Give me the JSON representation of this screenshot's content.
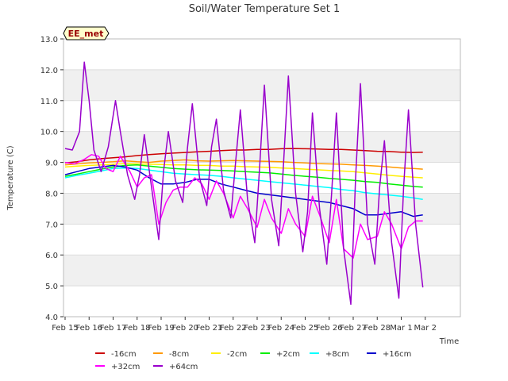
{
  "chart_data": {
    "type": "line",
    "title": "Soil/Water Temperature Set 1",
    "xlabel": "Time",
    "ylabel": "Temperature (C)",
    "station_label": "EE_met",
    "ylim": [
      4.0,
      13.0
    ],
    "yticks": [
      "4.0",
      "5.0",
      "6.0",
      "7.0",
      "8.0",
      "9.0",
      "10.0",
      "11.0",
      "12.0",
      "13.0"
    ],
    "xlim": [
      0,
      16
    ],
    "xtick_labels": [
      "Feb 15",
      "Feb 16",
      "Feb 17",
      "Feb 18",
      "Feb 19",
      "Feb 20",
      "Feb 21",
      "Feb 22",
      "Feb 23",
      "Feb 24",
      "Feb 25",
      "Feb 26",
      "Feb 27",
      "Feb 28",
      "Mar 1",
      "Mar 2"
    ],
    "grid": "horizontal alternating bands",
    "legend_placement": "bottom",
    "series": [
      {
        "name": "-16cm",
        "color": "#cc0000",
        "x": [
          0,
          0.5,
          1,
          1.5,
          2,
          2.5,
          3,
          3.5,
          4,
          4.5,
          5,
          5.5,
          6,
          6.5,
          7,
          7.5,
          8,
          8.5,
          9,
          9.5,
          10,
          10.5,
          11,
          11.5,
          12,
          12.5,
          13,
          13.5,
          14,
          14.5,
          14.9
        ],
        "values": [
          8.98,
          9.02,
          9.08,
          9.12,
          9.15,
          9.18,
          9.22,
          9.25,
          9.28,
          9.3,
          9.32,
          9.34,
          9.36,
          9.38,
          9.4,
          9.4,
          9.42,
          9.42,
          9.44,
          9.45,
          9.44,
          9.43,
          9.42,
          9.42,
          9.4,
          9.38,
          9.36,
          9.35,
          9.33,
          9.32,
          9.33
        ]
      },
      {
        "name": "-8cm",
        "color": "#ff9900",
        "x": [
          0,
          0.5,
          1,
          1.5,
          2,
          2.5,
          3,
          3.5,
          4,
          4.5,
          5,
          5.5,
          6,
          6.5,
          7,
          7.5,
          8,
          8.5,
          9,
          9.5,
          10,
          10.5,
          11,
          11.5,
          12,
          12.5,
          13,
          13.5,
          14,
          14.5,
          14.9
        ],
        "values": [
          8.92,
          8.95,
          8.98,
          9.0,
          9.02,
          9.05,
          9.02,
          9.0,
          9.04,
          9.06,
          9.08,
          9.05,
          9.04,
          9.05,
          9.06,
          9.05,
          9.04,
          9.03,
          9.02,
          9.0,
          8.98,
          8.96,
          8.95,
          8.94,
          8.92,
          8.9,
          8.88,
          8.85,
          8.82,
          8.8,
          8.78
        ]
      },
      {
        "name": "-2cm",
        "color": "#ffee00",
        "x": [
          0,
          0.5,
          1,
          1.5,
          2,
          2.5,
          3,
          3.5,
          4,
          4.5,
          5,
          5.5,
          6,
          6.5,
          7,
          7.5,
          8,
          8.5,
          9,
          9.5,
          10,
          10.5,
          11,
          11.5,
          12,
          12.5,
          13,
          13.5,
          14,
          14.5,
          14.9
        ],
        "values": [
          8.85,
          8.88,
          8.9,
          8.92,
          8.94,
          8.96,
          8.95,
          8.94,
          8.93,
          8.92,
          8.92,
          8.9,
          8.9,
          8.88,
          8.88,
          8.86,
          8.85,
          8.84,
          8.82,
          8.8,
          8.78,
          8.76,
          8.74,
          8.72,
          8.7,
          8.66,
          8.62,
          8.58,
          8.55,
          8.52,
          8.5
        ]
      },
      {
        "name": "+2cm",
        "color": "#00ee00",
        "x": [
          0,
          0.5,
          1,
          1.5,
          2,
          2.5,
          3,
          3.5,
          4,
          4.5,
          5,
          5.5,
          6,
          6.5,
          7,
          7.5,
          8,
          8.5,
          9,
          9.5,
          10,
          10.5,
          11,
          11.5,
          12,
          12.5,
          13,
          13.5,
          14,
          14.5,
          14.9
        ],
        "values": [
          8.55,
          8.62,
          8.7,
          8.78,
          8.85,
          8.9,
          8.92,
          8.88,
          8.84,
          8.8,
          8.78,
          8.76,
          8.75,
          8.74,
          8.72,
          8.7,
          8.68,
          8.66,
          8.62,
          8.58,
          8.55,
          8.52,
          8.48,
          8.45,
          8.42,
          8.38,
          8.35,
          8.3,
          8.26,
          8.22,
          8.2
        ]
      },
      {
        "name": "+8cm",
        "color": "#00ffff",
        "x": [
          0,
          0.5,
          1,
          1.5,
          2,
          2.5,
          3,
          3.5,
          4,
          4.5,
          5,
          5.5,
          6,
          6.5,
          7,
          7.5,
          8,
          8.5,
          9,
          9.5,
          10,
          10.5,
          11,
          11.5,
          12,
          12.5,
          13,
          13.5,
          14,
          14.5,
          14.9
        ],
        "values": [
          8.5,
          8.58,
          8.65,
          8.72,
          8.8,
          8.82,
          8.8,
          8.75,
          8.7,
          8.65,
          8.62,
          8.6,
          8.58,
          8.55,
          8.5,
          8.46,
          8.42,
          8.38,
          8.34,
          8.3,
          8.26,
          8.22,
          8.18,
          8.12,
          8.08,
          8.02,
          7.98,
          7.94,
          7.9,
          7.85,
          7.8
        ]
      },
      {
        "name": "+16cm",
        "color": "#0000cc",
        "x": [
          0,
          0.5,
          1,
          1.5,
          2,
          2.5,
          3,
          3.5,
          4,
          4.5,
          5,
          5.5,
          6,
          6.5,
          7,
          7.5,
          8,
          8.5,
          9,
          9.5,
          10,
          10.5,
          11,
          11.5,
          12,
          12.5,
          13,
          13.5,
          14,
          14.5,
          14.9
        ],
        "values": [
          8.6,
          8.7,
          8.8,
          8.85,
          8.9,
          8.85,
          8.75,
          8.5,
          8.3,
          8.3,
          8.35,
          8.45,
          8.45,
          8.3,
          8.2,
          8.1,
          8.0,
          7.95,
          7.9,
          7.85,
          7.8,
          7.75,
          7.7,
          7.6,
          7.5,
          7.3,
          7.3,
          7.35,
          7.4,
          7.25,
          7.3
        ]
      },
      {
        "name": "+32cm",
        "color": "#ff00ff",
        "x": [
          0,
          0.4,
          0.8,
          1.1,
          1.4,
          1.7,
          2.0,
          2.3,
          2.7,
          3.0,
          3.3,
          3.6,
          3.9,
          4.2,
          4.5,
          4.8,
          5.1,
          5.4,
          5.7,
          6.0,
          6.3,
          6.6,
          7.0,
          7.3,
          7.6,
          8.0,
          8.3,
          8.6,
          9.0,
          9.3,
          9.6,
          10.0,
          10.3,
          10.6,
          11.0,
          11.3,
          11.6,
          12.0,
          12.3,
          12.6,
          13.0,
          13.3,
          13.6,
          14.0,
          14.3,
          14.6,
          14.9
        ],
        "values": [
          9.0,
          8.95,
          9.1,
          9.25,
          9.2,
          8.8,
          8.7,
          9.2,
          8.7,
          8.2,
          8.5,
          8.6,
          7.0,
          7.7,
          8.1,
          8.2,
          8.2,
          8.5,
          8.3,
          7.8,
          8.4,
          8.0,
          7.2,
          7.9,
          7.5,
          6.9,
          7.8,
          7.2,
          6.7,
          7.5,
          7.0,
          6.6,
          7.9,
          7.3,
          6.4,
          7.8,
          6.2,
          5.9,
          7.0,
          6.5,
          6.6,
          7.4,
          7.0,
          6.2,
          6.9,
          7.1,
          7.1
        ]
      },
      {
        "name": "+64cm",
        "color": "#9900cc",
        "x": [
          0,
          0.3,
          0.6,
          0.8,
          1.0,
          1.2,
          1.5,
          1.8,
          2.1,
          2.3,
          2.6,
          2.9,
          3.1,
          3.3,
          3.6,
          3.9,
          4.1,
          4.3,
          4.6,
          4.9,
          5.1,
          5.3,
          5.6,
          5.9,
          6.1,
          6.3,
          6.6,
          6.9,
          7.1,
          7.3,
          7.6,
          7.9,
          8.1,
          8.3,
          8.6,
          8.9,
          9.1,
          9.3,
          9.6,
          9.9,
          10.1,
          10.3,
          10.6,
          10.9,
          11.1,
          11.3,
          11.6,
          11.9,
          12.1,
          12.3,
          12.6,
          12.9,
          13.1,
          13.3,
          13.6,
          13.9,
          14.1,
          14.3,
          14.6,
          14.9
        ],
        "values": [
          9.45,
          9.4,
          10.0,
          12.25,
          11.0,
          9.4,
          8.7,
          9.5,
          11.0,
          10.0,
          8.6,
          7.8,
          8.6,
          9.9,
          8.2,
          6.5,
          8.7,
          10.0,
          8.4,
          7.7,
          9.5,
          10.9,
          8.5,
          7.6,
          9.5,
          10.4,
          8.1,
          7.2,
          9.0,
          10.7,
          7.8,
          6.4,
          8.8,
          11.5,
          7.8,
          6.3,
          9.0,
          11.8,
          8.0,
          6.1,
          7.4,
          10.6,
          7.5,
          5.7,
          8.0,
          10.6,
          6.2,
          4.4,
          8.5,
          11.55,
          7.0,
          5.7,
          8.2,
          9.7,
          6.4,
          4.6,
          8.2,
          10.7,
          7.0,
          4.95
        ]
      }
    ]
  }
}
